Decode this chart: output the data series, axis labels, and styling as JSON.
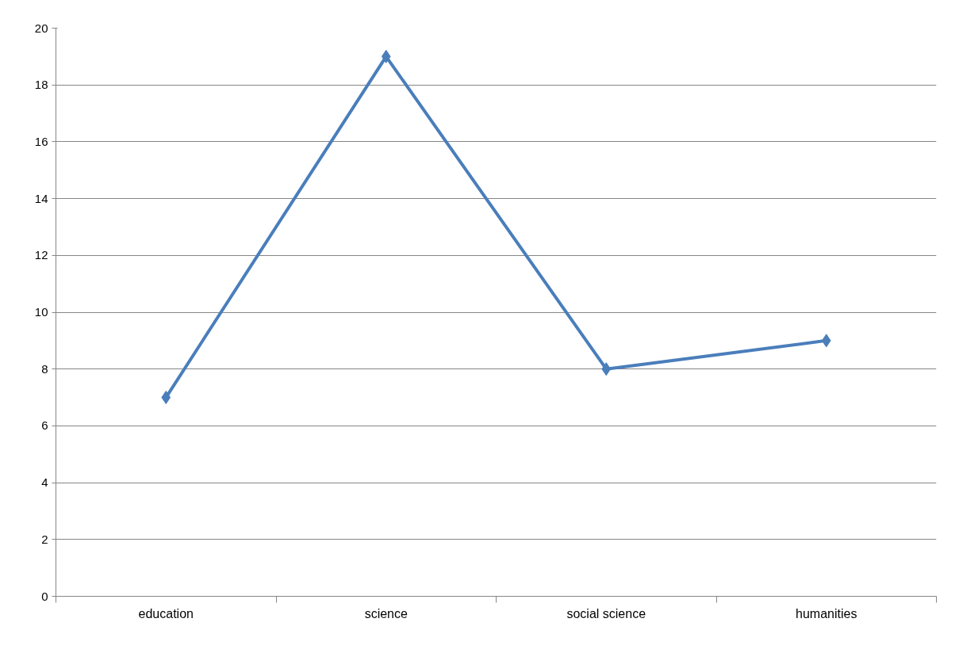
{
  "chart_data": {
    "type": "line",
    "categories": [
      "education",
      "science",
      "social science",
      "humanities"
    ],
    "series": [
      {
        "color": "#4a7ebb",
        "values": [
          7,
          19,
          8,
          9
        ]
      }
    ],
    "ylim": [
      0,
      20
    ],
    "yticks": [
      0,
      2,
      4,
      6,
      8,
      10,
      12,
      14,
      16,
      18,
      20
    ],
    "grid": "y",
    "marker": "diamond",
    "line_style": "solid"
  }
}
